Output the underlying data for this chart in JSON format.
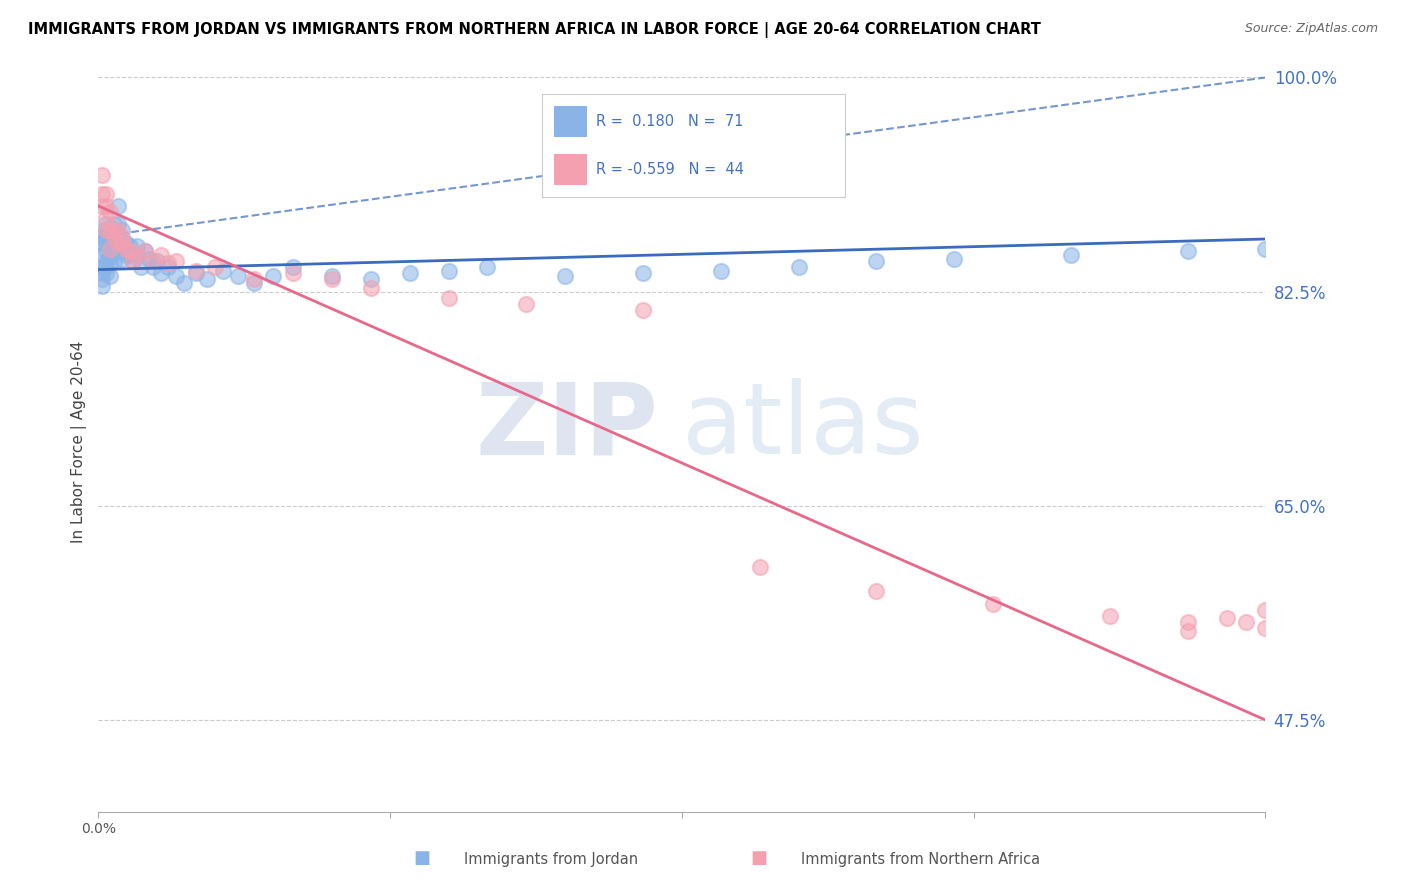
{
  "title": "IMMIGRANTS FROM JORDAN VS IMMIGRANTS FROM NORTHERN AFRICA IN LABOR FORCE | AGE 20-64 CORRELATION CHART",
  "source": "Source: ZipAtlas.com",
  "ylabel": "In Labor Force | Age 20-64",
  "xlabel_jordan": "Immigrants from Jordan",
  "xlabel_africa": "Immigrants from Northern Africa",
  "R_jordan": 0.18,
  "N_jordan": 71,
  "R_africa": -0.559,
  "N_africa": 44,
  "jordan_color": "#8ab4e8",
  "africa_color": "#f4a0b0",
  "trend_jordan_color": "#3a6bbd",
  "trend_africa_color": "#e8688a",
  "y_min": 0.4,
  "y_max": 1.005,
  "x_min": 0.0,
  "x_max": 0.3,
  "yticks": [
    0.475,
    0.65,
    0.825,
    1.0
  ],
  "ytick_labels": [
    "47.5%",
    "65.0%",
    "82.5%",
    "100.0%"
  ],
  "xticks": [
    0.0,
    0.075,
    0.15,
    0.225,
    0.3
  ],
  "xtick_labels": [
    "0.0%",
    "",
    "",
    "",
    ""
  ],
  "watermark_zip": "ZIP",
  "watermark_atlas": "atlas",
  "jordan_x": [
    0.001,
    0.001,
    0.001,
    0.001,
    0.001,
    0.001,
    0.001,
    0.002,
    0.002,
    0.002,
    0.002,
    0.002,
    0.002,
    0.002,
    0.002,
    0.003,
    0.003,
    0.003,
    0.003,
    0.003,
    0.003,
    0.003,
    0.004,
    0.004,
    0.004,
    0.004,
    0.005,
    0.005,
    0.005,
    0.005,
    0.005,
    0.006,
    0.006,
    0.006,
    0.007,
    0.007,
    0.008,
    0.008,
    0.009,
    0.01,
    0.01,
    0.011,
    0.012,
    0.013,
    0.014,
    0.015,
    0.016,
    0.018,
    0.02,
    0.022,
    0.025,
    0.028,
    0.032,
    0.036,
    0.04,
    0.045,
    0.05,
    0.06,
    0.07,
    0.08,
    0.09,
    0.1,
    0.12,
    0.14,
    0.16,
    0.18,
    0.2,
    0.22,
    0.25,
    0.28,
    0.3
  ],
  "jordan_y": [
    0.865,
    0.855,
    0.845,
    0.84,
    0.835,
    0.83,
    0.87,
    0.88,
    0.875,
    0.87,
    0.865,
    0.858,
    0.85,
    0.845,
    0.84,
    0.87,
    0.862,
    0.855,
    0.848,
    0.838,
    0.87,
    0.855,
    0.88,
    0.87,
    0.862,
    0.85,
    0.895,
    0.88,
    0.87,
    0.862,
    0.858,
    0.875,
    0.862,
    0.852,
    0.865,
    0.855,
    0.862,
    0.855,
    0.85,
    0.862,
    0.855,
    0.845,
    0.858,
    0.852,
    0.845,
    0.85,
    0.84,
    0.845,
    0.838,
    0.832,
    0.84,
    0.835,
    0.842,
    0.838,
    0.832,
    0.838,
    0.845,
    0.838,
    0.835,
    0.84,
    0.842,
    0.845,
    0.838,
    0.84,
    0.842,
    0.845,
    0.85,
    0.852,
    0.855,
    0.858,
    0.86
  ],
  "africa_x": [
    0.001,
    0.001,
    0.001,
    0.002,
    0.002,
    0.002,
    0.002,
    0.003,
    0.003,
    0.003,
    0.004,
    0.004,
    0.005,
    0.005,
    0.006,
    0.006,
    0.007,
    0.008,
    0.009,
    0.01,
    0.012,
    0.014,
    0.016,
    0.018,
    0.02,
    0.025,
    0.03,
    0.04,
    0.05,
    0.06,
    0.07,
    0.09,
    0.11,
    0.14,
    0.17,
    0.2,
    0.23,
    0.26,
    0.28,
    0.3,
    0.3,
    0.29,
    0.28,
    0.295
  ],
  "africa_y": [
    0.92,
    0.905,
    0.895,
    0.905,
    0.895,
    0.885,
    0.875,
    0.89,
    0.875,
    0.86,
    0.875,
    0.87,
    0.875,
    0.865,
    0.87,
    0.865,
    0.86,
    0.858,
    0.85,
    0.855,
    0.858,
    0.85,
    0.855,
    0.848,
    0.85,
    0.842,
    0.845,
    0.835,
    0.84,
    0.835,
    0.828,
    0.82,
    0.815,
    0.81,
    0.6,
    0.58,
    0.57,
    0.56,
    0.555,
    0.55,
    0.565,
    0.558,
    0.548,
    0.555
  ],
  "jordan_trend_x": [
    0.0,
    0.3
  ],
  "jordan_trend_y": [
    0.843,
    0.868
  ],
  "africa_trend_x": [
    0.0,
    0.3
  ],
  "africa_trend_y": [
    0.895,
    0.475
  ]
}
